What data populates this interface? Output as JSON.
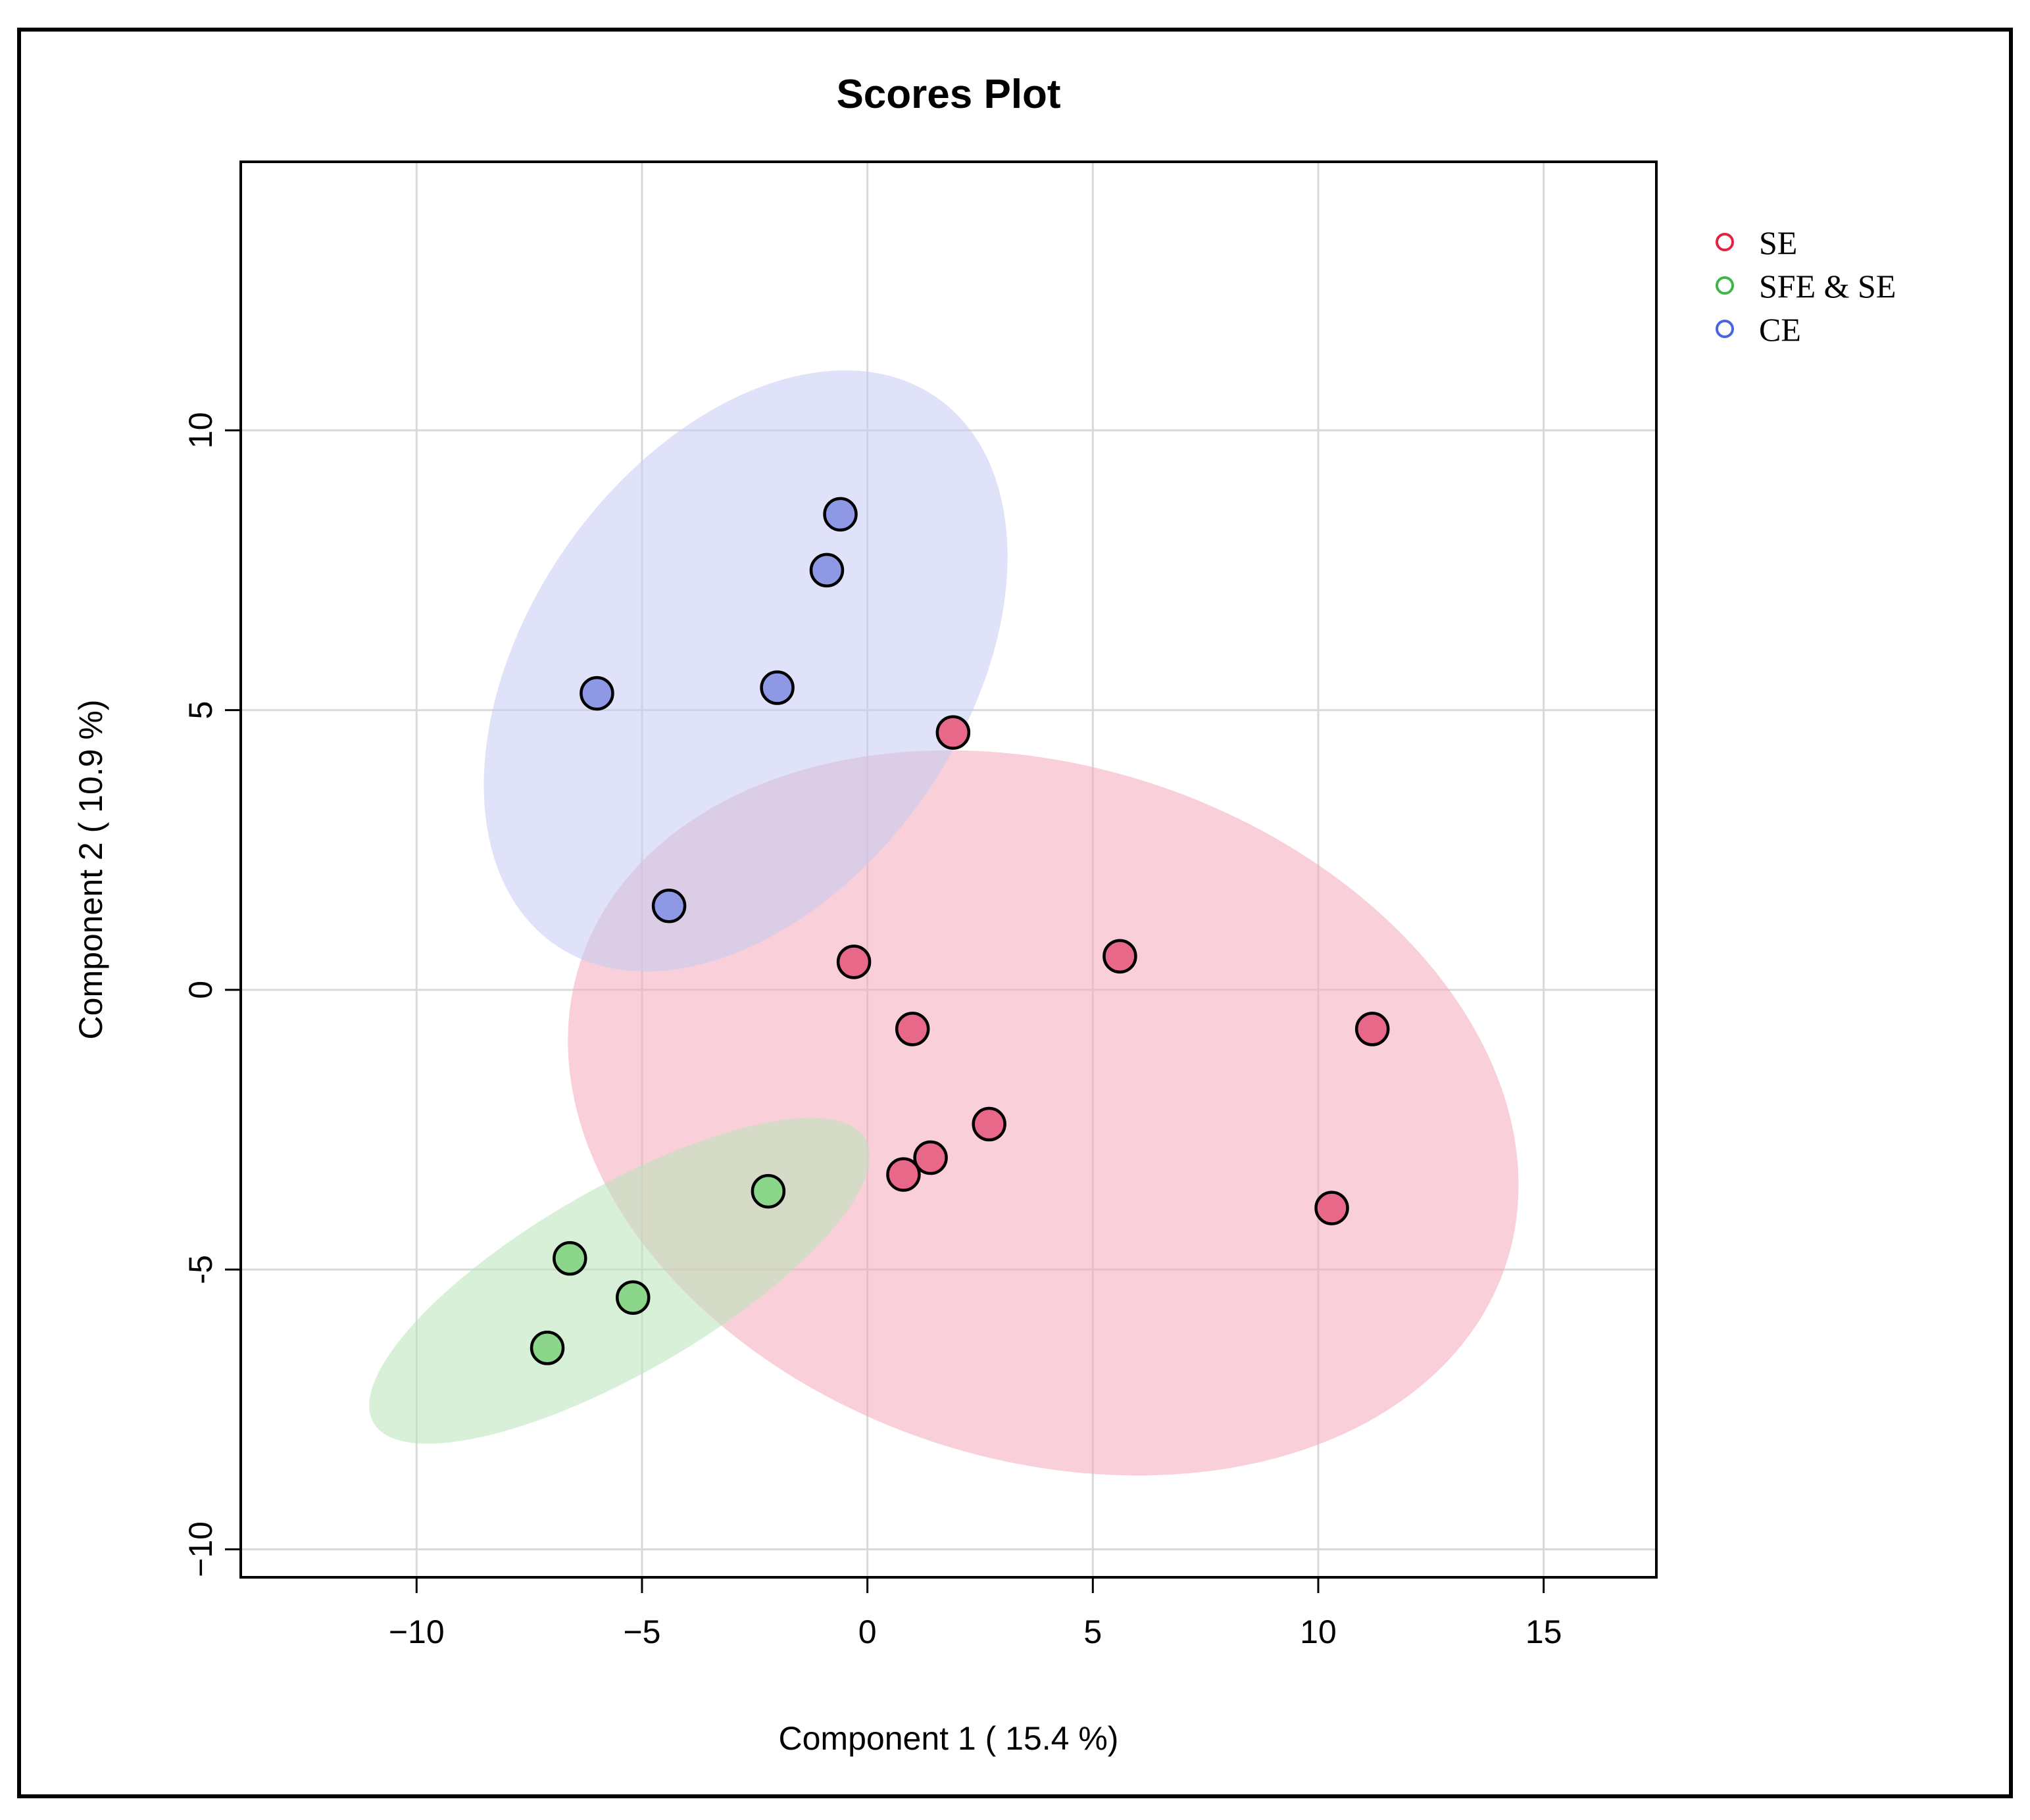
{
  "chart_data": {
    "type": "scatter",
    "title": "Scores Plot",
    "xlabel": "Component 1 ( 15.4 %)",
    "ylabel": "Component 2 ( 10.9 %)",
    "xlim": [
      -13.9,
      17.5
    ],
    "ylim": [
      -10.5,
      14.8
    ],
    "xticks": [
      -10,
      -5,
      0,
      5,
      10,
      15
    ],
    "yticks": [
      -10,
      -5,
      0,
      5,
      10
    ],
    "xtick_labels": [
      "−10",
      "−5",
      "0",
      "5",
      "10",
      "15"
    ],
    "ytick_labels": [
      "−10",
      "-5",
      "0",
      "5",
      "10"
    ],
    "grid": true,
    "legend_position": "right",
    "series": [
      {
        "name": "SE",
        "color": "#e8688a",
        "legend_color": "#e8203f",
        "ellipse_color": "#f4a9bc",
        "x": [
          1.9,
          -0.3,
          5.6,
          1.0,
          11.2,
          2.7,
          1.4,
          0.8,
          10.3
        ],
        "y": [
          4.6,
          0.5,
          0.6,
          -0.7,
          -0.7,
          -2.4,
          -3.0,
          -3.3,
          -3.9
        ],
        "ellipse": {
          "cx": 3.9,
          "cy": -2.2,
          "rx": 10.8,
          "ry": 6.2,
          "angle": -18
        }
      },
      {
        "name": "SFE & SE",
        "color": "#8bd68b",
        "legend_color": "#40b64a",
        "ellipse_color": "#b9e4b8",
        "x": [
          -2.2,
          -6.6,
          -5.2,
          -7.1
        ],
        "y": [
          -3.6,
          -4.8,
          -5.5,
          -6.4
        ],
        "ellipse": {
          "cx": -5.5,
          "cy": -5.2,
          "rx": 6.3,
          "ry": 1.65,
          "angle": 30
        }
      },
      {
        "name": "CE",
        "color": "#8f98e4",
        "legend_color": "#4964dc",
        "ellipse_color": "#c4caf2",
        "x": [
          -0.6,
          -0.9,
          -6.0,
          -2.0,
          -4.4
        ],
        "y": [
          8.5,
          7.5,
          5.3,
          5.4,
          1.5
        ],
        "ellipse": {
          "cx": -2.7,
          "cy": 5.7,
          "rx": 7.4,
          "ry": 3.9,
          "angle": 55
        }
      }
    ]
  }
}
